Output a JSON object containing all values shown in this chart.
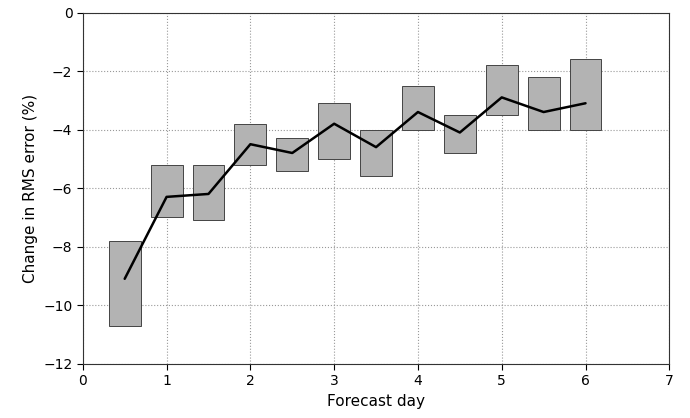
{
  "x_positions": [
    0.5,
    1.0,
    1.5,
    2.0,
    2.5,
    3.0,
    3.5,
    4.0,
    4.5,
    5.0,
    5.5,
    6.0
  ],
  "line_values": [
    -9.1,
    -6.3,
    -6.2,
    -4.5,
    -4.8,
    -3.8,
    -4.6,
    -3.4,
    -4.1,
    -2.9,
    -3.4,
    -3.1
  ],
  "bar_tops": [
    -7.8,
    -5.2,
    -5.2,
    -3.8,
    -4.3,
    -3.1,
    -4.0,
    -2.5,
    -3.5,
    -1.8,
    -2.2,
    -1.6
  ],
  "bar_bottoms": [
    -10.7,
    -7.0,
    -7.1,
    -5.2,
    -5.4,
    -5.0,
    -5.6,
    -4.0,
    -4.8,
    -3.5,
    -4.0,
    -4.0
  ],
  "bar_width": 0.38,
  "bar_color": "#b3b3b3",
  "bar_edgecolor": "#444444",
  "line_color": "#000000",
  "line_width": 1.8,
  "xlim": [
    0,
    7
  ],
  "ylim": [
    -12,
    0
  ],
  "xticks": [
    0,
    1,
    2,
    3,
    4,
    5,
    6,
    7
  ],
  "yticks": [
    0,
    -2,
    -4,
    -6,
    -8,
    -10,
    -12
  ],
  "xlabel": "Forecast day",
  "ylabel": "Change in RMS error (%)",
  "grid_color": "#999999",
  "grid_linestyle": ":",
  "grid_linewidth": 0.8,
  "bg_color": "#ffffff",
  "tick_fontsize": 10,
  "label_fontsize": 11
}
